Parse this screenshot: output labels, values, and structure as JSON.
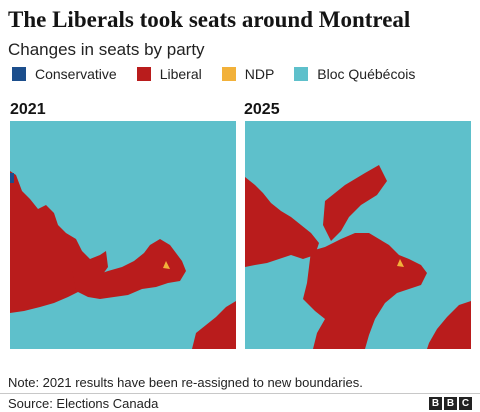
{
  "title": "The Liberals took seats around Montreal",
  "subtitle": "Changes in seats by party",
  "legend": [
    {
      "label": "Conservative",
      "color": "#1c4e8c"
    },
    {
      "label": "Liberal",
      "color": "#b91c1c"
    },
    {
      "label": "NDP",
      "color": "#f2b13a"
    },
    {
      "label": "Bloc Québécois",
      "color": "#5ec0cb"
    }
  ],
  "maps": [
    {
      "year": "2021"
    },
    {
      "year": "2025"
    }
  ],
  "note": "Note: 2021 results have been re-assigned to new boundaries.",
  "source": "Source: Elections Canada",
  "logo": [
    "B",
    "B",
    "C"
  ]
}
